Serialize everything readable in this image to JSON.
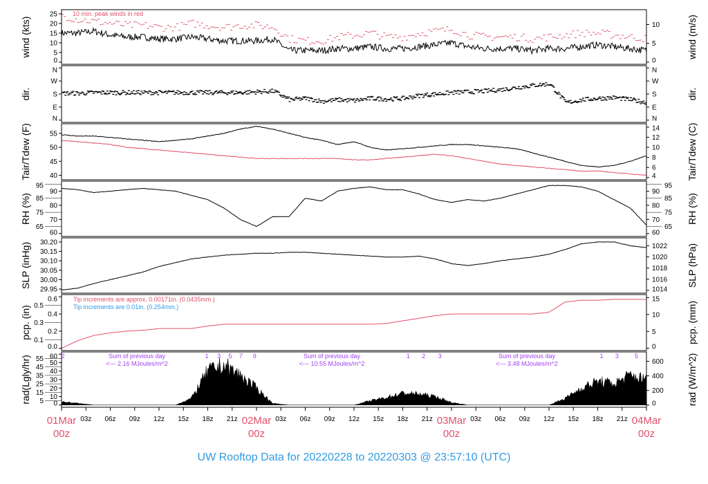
{
  "title": "UW Rooftop Data for 20220228  to  20220303 @ 23:57:10  (UTC)",
  "colors": {
    "main": "#000000",
    "secondary": "#e0506a",
    "blue": "#2f9be0",
    "purple": "#a040f0"
  },
  "chart_data": [
    {
      "type": "line",
      "id": "wind",
      "ylabel": "wind (kts)",
      "ylabel_right": "wind (m/s)",
      "ylim": [
        0,
        26
      ],
      "yticks": [
        0,
        5,
        10,
        15,
        20,
        25
      ],
      "right_ticks": [
        0,
        5,
        10
      ],
      "right_factor": 0.5144,
      "annotation": "10 min. peak winds in red",
      "x_hours_step": 2,
      "series": [
        {
          "name": "wind",
          "color": "#000000",
          "values": [
            15,
            15,
            16,
            14,
            13,
            13,
            12,
            12,
            13,
            12,
            11,
            11,
            11,
            12,
            6,
            6,
            6,
            7,
            7,
            8,
            7,
            7,
            8,
            9,
            10,
            8,
            7,
            7,
            7,
            6,
            7,
            7,
            8,
            9,
            8,
            7,
            6
          ]
        },
        {
          "name": "peak",
          "color": "#e0506a",
          "values": [
            24,
            22,
            21,
            20,
            19,
            19,
            18,
            18,
            20,
            19,
            18,
            19,
            19,
            18,
            12,
            11,
            11,
            13,
            14,
            15,
            13,
            13,
            15,
            16,
            17,
            14,
            13,
            13,
            13,
            12,
            13,
            14,
            15,
            15,
            14,
            13,
            12
          ]
        }
      ]
    },
    {
      "type": "scatter",
      "id": "dir",
      "ylabel": "dir.",
      "ylabel_right": "dir.",
      "ylim": [
        0,
        360
      ],
      "ytick_values": [
        0,
        90,
        180,
        270,
        360
      ],
      "ytick_labels": [
        "N",
        "E",
        "S",
        "W",
        "N"
      ],
      "x_hours_step": 2,
      "series": [
        {
          "name": "direction",
          "color": "#000000",
          "values": [
            185,
            185,
            190,
            190,
            190,
            190,
            190,
            190,
            190,
            190,
            190,
            190,
            195,
            200,
            140,
            150,
            130,
            140,
            135,
            150,
            145,
            150,
            170,
            180,
            190,
            195,
            200,
            210,
            225,
            240,
            250,
            120,
            140,
            150,
            155,
            140,
            120
          ]
        }
      ]
    },
    {
      "type": "line",
      "id": "temp",
      "ylabel": "Tair/Tdew (F)",
      "ylabel_right": "Tair/Tdew (C)",
      "ylim": [
        39.2,
        57.6
      ],
      "yticks": [
        40,
        45,
        50,
        55
      ],
      "right_ticks": [
        4,
        6,
        8,
        10,
        12,
        14
      ],
      "right_conv": "C",
      "x_hours_step": 2,
      "series": [
        {
          "name": "Tair",
          "color": "#000000",
          "values": [
            54.5,
            54,
            54,
            53.5,
            53,
            52.5,
            52,
            52.5,
            53,
            54,
            55,
            56.5,
            57.5,
            56.5,
            55,
            53.5,
            52.5,
            51,
            52,
            50,
            49,
            49.5,
            50,
            50.5,
            51,
            51,
            50.5,
            50,
            49.5,
            48,
            46.5,
            45,
            43.5,
            43,
            43.5,
            45,
            47
          ]
        },
        {
          "name": "Tdew",
          "color": "#e0506a",
          "values": [
            52.5,
            52,
            51.5,
            51,
            50,
            49.5,
            49,
            48.5,
            48,
            47.5,
            47,
            46.5,
            46,
            46,
            46,
            46,
            46,
            46,
            45.5,
            45.5,
            46,
            46.5,
            47,
            47.5,
            47,
            46,
            45,
            44,
            43.5,
            43,
            42.5,
            42,
            41.5,
            41.5,
            41,
            40.5,
            40
          ]
        }
      ]
    },
    {
      "type": "line",
      "id": "rh",
      "ylabel": "RH (%)",
      "ylabel_right": "RH (%)",
      "ylim": [
        59.5,
        95.5
      ],
      "yticks": [
        60,
        65,
        70,
        75,
        80,
        85,
        90,
        95
      ],
      "right_ticks": [
        60,
        65,
        70,
        75,
        80,
        85,
        90,
        95
      ],
      "right_factor": 1,
      "x_hours_step": 2,
      "series": [
        {
          "name": "RH",
          "color": "#000000",
          "values": [
            92,
            91,
            89,
            90,
            91,
            92,
            91,
            90,
            87,
            84,
            78,
            70,
            65,
            72,
            72,
            85,
            83,
            90,
            92,
            93,
            91,
            91,
            88,
            84,
            82,
            84,
            83,
            85,
            88,
            91,
            94,
            94,
            93,
            90,
            84,
            78,
            66
          ]
        }
      ]
    },
    {
      "type": "line",
      "id": "slp",
      "ylabel": "SLP (inHg)",
      "ylabel_right": "SLP (hPa)",
      "ylim": [
        29.94,
        30.21
      ],
      "yticks": [
        29.95,
        30.0,
        30.05,
        30.1,
        30.15,
        30.2
      ],
      "right_ticks": [
        1014,
        1016,
        1018,
        1020,
        1022
      ],
      "right_factor": 33.8639,
      "x_hours_step": 2,
      "series": [
        {
          "name": "SLP",
          "color": "#000000",
          "values": [
            29.945,
            29.955,
            29.98,
            30.0,
            30.02,
            30.04,
            30.07,
            30.09,
            30.11,
            30.12,
            30.13,
            30.135,
            30.14,
            30.14,
            30.145,
            30.145,
            30.14,
            30.135,
            30.13,
            30.125,
            30.12,
            30.12,
            30.125,
            30.11,
            30.085,
            30.075,
            30.085,
            30.1,
            30.11,
            30.12,
            30.135,
            30.16,
            30.19,
            30.2,
            30.2,
            30.18,
            30.17
          ]
        }
      ]
    },
    {
      "type": "line",
      "id": "pcp",
      "ylabel": "pcp. (in)",
      "ylabel_right": "pcp. (mm)",
      "ylim": [
        0,
        0.6
      ],
      "yticks": [
        0.0,
        0.1,
        0.2,
        0.3,
        0.4,
        0.5,
        0.6
      ],
      "right_ticks": [
        0,
        5,
        10,
        15
      ],
      "right_factor": 25.4,
      "notes": [
        {
          "text": "Tip increments are approx. 0.00171in. (0.0435mm.)",
          "color": "#e0506a"
        },
        {
          "text": "Tip increments are 0.01in. (0.254mm.)",
          "color": "#2f9be0"
        }
      ],
      "x_hours_step": 2,
      "series": [
        {
          "name": "precip",
          "color": "#e0506a",
          "values": [
            0,
            0.09,
            0.15,
            0.18,
            0.2,
            0.21,
            0.23,
            0.23,
            0.23,
            0.26,
            0.28,
            0.28,
            0.28,
            0.28,
            0.28,
            0.28,
            0.28,
            0.28,
            0.28,
            0.28,
            0.29,
            0.32,
            0.35,
            0.38,
            0.4,
            0.4,
            0.4,
            0.4,
            0.4,
            0.4,
            0.42,
            0.54,
            0.56,
            0.56,
            0.57,
            0.57,
            0.57
          ]
        }
      ]
    },
    {
      "type": "area",
      "id": "rad",
      "ylabel": "rad(Lgly/hr)",
      "ylabel_right": "rad (W/m^2)",
      "ylim": [
        0,
        60
      ],
      "yticks": [
        0,
        5,
        10,
        15,
        20,
        25,
        30,
        35,
        40,
        45,
        50,
        55,
        60
      ],
      "right_ticks": [
        0,
        200,
        400,
        600
      ],
      "right_factor": 11.63,
      "x_hours_step": 2,
      "series": [
        {
          "name": "radiation",
          "color": "#000000",
          "values": [
            4,
            2,
            0,
            0,
            0,
            0,
            0,
            0,
            8,
            40,
            47,
            35,
            20,
            2,
            0,
            0,
            0,
            0,
            0,
            5,
            9,
            14,
            13,
            10,
            3,
            0,
            0,
            0,
            0,
            0,
            0,
            8,
            20,
            28,
            25,
            35,
            30
          ]
        }
      ],
      "daily_sums": [
        {
          "hour": 8,
          "line1": "Sum of previous day",
          "line2": "<--- 2.16 MJoules/m^2"
        },
        {
          "hour": 32,
          "line1": "Sum of previous day",
          "line2": "<--- 10.55 MJoules/m^2"
        },
        {
          "hour": 56,
          "line1": "Sum of previous day",
          "line2": "<--- 3.48 MJoules/m^2"
        }
      ],
      "hour_marks": [
        {
          "hour": 0,
          "text": "2"
        },
        {
          "hour": 17.7,
          "text": "1"
        },
        {
          "hour": 19.2,
          "text": "3"
        },
        {
          "hour": 20.6,
          "text": "5"
        },
        {
          "hour": 21.9,
          "text": "7"
        },
        {
          "hour": 23.6,
          "text": "9"
        },
        {
          "hour": 42.5,
          "text": "1"
        },
        {
          "hour": 44.4,
          "text": "2"
        },
        {
          "hour": 46.4,
          "text": "3"
        },
        {
          "hour": 66.3,
          "text": "1"
        },
        {
          "hour": 68.2,
          "text": "3"
        },
        {
          "hour": 70.6,
          "text": "5"
        }
      ]
    }
  ],
  "x_axis": {
    "range_hours": [
      0,
      72
    ],
    "ticks": [
      {
        "hour": 0,
        "label": "01Mar",
        "sub": "00z",
        "day": true
      },
      {
        "hour": 3,
        "label": "03z"
      },
      {
        "hour": 6,
        "label": "06z"
      },
      {
        "hour": 9,
        "label": "09z"
      },
      {
        "hour": 12,
        "label": "12z"
      },
      {
        "hour": 15,
        "label": "15z"
      },
      {
        "hour": 18,
        "label": "18z"
      },
      {
        "hour": 21,
        "label": "21z"
      },
      {
        "hour": 24,
        "label": "02Mar",
        "sub": "00z",
        "day": true
      },
      {
        "hour": 27,
        "label": "03z"
      },
      {
        "hour": 30,
        "label": "06z"
      },
      {
        "hour": 33,
        "label": "09z"
      },
      {
        "hour": 36,
        "label": "12z"
      },
      {
        "hour": 39,
        "label": "15z"
      },
      {
        "hour": 42,
        "label": "18z"
      },
      {
        "hour": 45,
        "label": "21z"
      },
      {
        "hour": 48,
        "label": "03Mar",
        "sub": "00z",
        "day": true
      },
      {
        "hour": 51,
        "label": "03z"
      },
      {
        "hour": 54,
        "label": "06z"
      },
      {
        "hour": 57,
        "label": "09z"
      },
      {
        "hour": 60,
        "label": "12z"
      },
      {
        "hour": 63,
        "label": "15z"
      },
      {
        "hour": 66,
        "label": "18z"
      },
      {
        "hour": 69,
        "label": "21z"
      },
      {
        "hour": 72,
        "label": "04Mar",
        "sub": "00z",
        "day": true
      }
    ]
  }
}
